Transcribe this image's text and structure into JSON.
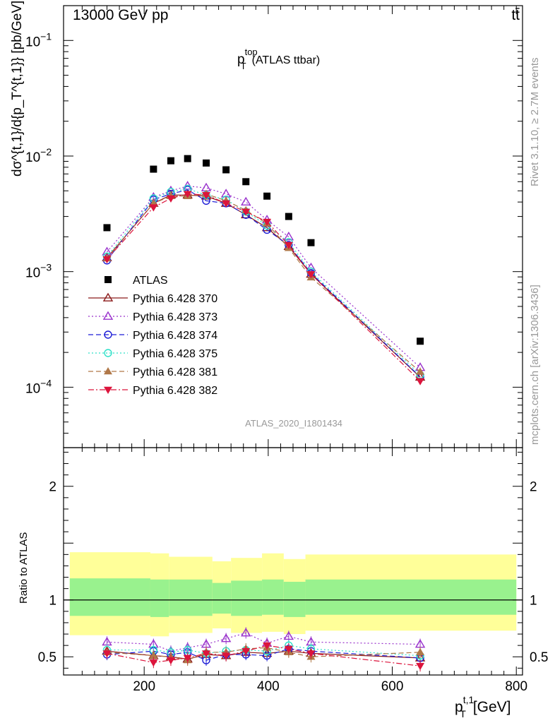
{
  "header": {
    "energy": "13000 GeV pp",
    "process": "tt̄",
    "side_rivet": "Rivet 3.1.10, ≥ 2.7M events",
    "side_source": "mcplots.cern.ch [arXiv:1306.3436]",
    "analysis_id": "ATLAS_2020_I1801434"
  },
  "chart_data": [
    {
      "type": "scatter",
      "title": "p_T^top (ATLAS ttbar)",
      "title_main": "p",
      "title_sub": "T",
      "title_sup": "top",
      "title_rest": "(ATLAS ttbar)",
      "ylabel": "dσ^{t,1}/d{p_T^{t,1}} [pb/GeV]",
      "yscale": "log",
      "ylim": [
        3e-05,
        0.2
      ],
      "xlim": [
        70,
        810
      ],
      "grid": false,
      "legend_position": "middle-left",
      "y_ticks": [
        {
          "value": 0.1,
          "base": "10",
          "exp": "−1"
        },
        {
          "value": 0.01,
          "base": "10",
          "exp": "−2"
        },
        {
          "value": 0.001,
          "base": "10",
          "exp": "−3"
        },
        {
          "value": 0.0001,
          "base": "10",
          "exp": "−4"
        }
      ],
      "x": [
        140,
        215,
        243,
        270,
        300,
        332,
        364,
        398,
        433,
        469,
        645
      ],
      "series": [
        {
          "name": "ATLAS",
          "color": "#000000",
          "marker": "square",
          "dash": "none",
          "values": [
            0.0024,
            0.0077,
            0.0091,
            0.0095,
            0.0087,
            0.0076,
            0.006,
            0.0045,
            0.003,
            0.00178,
            0.00025
          ]
        },
        {
          "name": "Pythia 6.428 370",
          "color": "#8b1a1a",
          "marker": "triangle-open",
          "dash": "solid",
          "values": [
            0.00132,
            0.0039,
            0.0046,
            0.0046,
            0.0045,
            0.0039,
            0.0031,
            0.0024,
            0.00165,
            0.00095,
            0.000122
          ]
        },
        {
          "name": "Pythia 6.428 373",
          "color": "#9932cc",
          "marker": "triangle-open",
          "dash": "dotted",
          "values": [
            0.00148,
            0.0044,
            0.005,
            0.0055,
            0.0053,
            0.0047,
            0.004,
            0.0028,
            0.002,
            0.00108,
            0.000148
          ]
        },
        {
          "name": "Pythia 6.428 374",
          "color": "#1c1cd6",
          "marker": "circle-open",
          "dash": "dashed",
          "values": [
            0.00125,
            0.0042,
            0.0047,
            0.0051,
            0.0041,
            0.0039,
            0.0031,
            0.0023,
            0.0017,
            0.00097,
            0.000123
          ]
        },
        {
          "name": "Pythia 6.428 375",
          "color": "#2ee0c8",
          "marker": "circle-open",
          "dash": "dotted",
          "values": [
            0.00135,
            0.0043,
            0.0049,
            0.0052,
            0.0046,
            0.0042,
            0.0033,
            0.0025,
            0.0018,
            0.001,
            0.000128
          ]
        },
        {
          "name": "Pythia 6.428 381",
          "color": "#b07848",
          "marker": "triangle-filled",
          "dash": "dashed",
          "values": [
            0.0013,
            0.0039,
            0.0045,
            0.0045,
            0.0047,
            0.0041,
            0.0034,
            0.0026,
            0.0016,
            0.00089,
            0.000136
          ]
        },
        {
          "name": "Pythia 6.428 382",
          "color": "#dc143c",
          "marker": "triangle-down-filled",
          "dash": "dashdot",
          "values": [
            0.00128,
            0.0036,
            0.0043,
            0.0047,
            0.0046,
            0.0039,
            0.0033,
            0.0027,
            0.0017,
            0.00095,
            0.000113
          ]
        }
      ]
    },
    {
      "type": "scatter",
      "title": "",
      "ylabel": "Ratio to ATLAS",
      "xlabel": "p_T^{t,1} [GeV]",
      "xlabel_main": "p",
      "xlabel_sub": "T",
      "xlabel_sup": "t,1",
      "xlabel_unit": "[GeV]",
      "xlim": [
        70,
        810
      ],
      "ylim": [
        0.34,
        2.34
      ],
      "yscale": "linear",
      "x_ticks": [
        200,
        400,
        600,
        800
      ],
      "y_ticks": [
        0.5,
        1,
        2
      ],
      "reference_line": 1,
      "bands": {
        "edges": [
          80,
          210,
          240,
          310,
          340,
          390,
          425,
          460,
          800
        ],
        "inner_color": "#99f28e",
        "outer_color": "#ffff99",
        "inner_low": [
          0.86,
          0.85,
          0.86,
          0.88,
          0.86,
          0.87,
          0.85,
          0.87
        ],
        "inner_high": [
          1.19,
          1.18,
          1.18,
          1.15,
          1.17,
          1.18,
          1.16,
          1.18
        ],
        "outer_low": [
          0.69,
          0.68,
          0.71,
          0.75,
          0.71,
          0.72,
          0.7,
          0.73
        ],
        "outer_high": [
          1.42,
          1.41,
          1.38,
          1.34,
          1.37,
          1.41,
          1.36,
          1.4
        ]
      },
      "x": [
        140,
        215,
        243,
        270,
        300,
        332,
        364,
        398,
        433,
        469,
        645
      ],
      "series": [
        {
          "name": "Pythia 6.428 370",
          "values": [
            0.55,
            0.51,
            0.5,
            0.48,
            0.52,
            0.51,
            0.54,
            0.53,
            0.55,
            0.53,
            0.49
          ]
        },
        {
          "name": "Pythia 6.428 373",
          "values": [
            0.63,
            0.61,
            0.55,
            0.58,
            0.61,
            0.66,
            0.71,
            0.62,
            0.68,
            0.63,
            0.61
          ]
        },
        {
          "name": "Pythia 6.428 374",
          "values": [
            0.52,
            0.55,
            0.52,
            0.54,
            0.47,
            0.52,
            0.52,
            0.51,
            0.57,
            0.55,
            0.49
          ]
        },
        {
          "name": "Pythia 6.428 375",
          "values": [
            0.56,
            0.56,
            0.54,
            0.56,
            0.53,
            0.55,
            0.56,
            0.55,
            0.6,
            0.57,
            0.51
          ]
        },
        {
          "name": "Pythia 6.428 381",
          "values": [
            0.54,
            0.51,
            0.5,
            0.47,
            0.54,
            0.54,
            0.57,
            0.58,
            0.54,
            0.5,
            0.54
          ]
        },
        {
          "name": "Pythia 6.428 382",
          "values": [
            0.53,
            0.45,
            0.47,
            0.49,
            0.53,
            0.51,
            0.55,
            0.6,
            0.57,
            0.53,
            0.42
          ]
        }
      ]
    }
  ]
}
